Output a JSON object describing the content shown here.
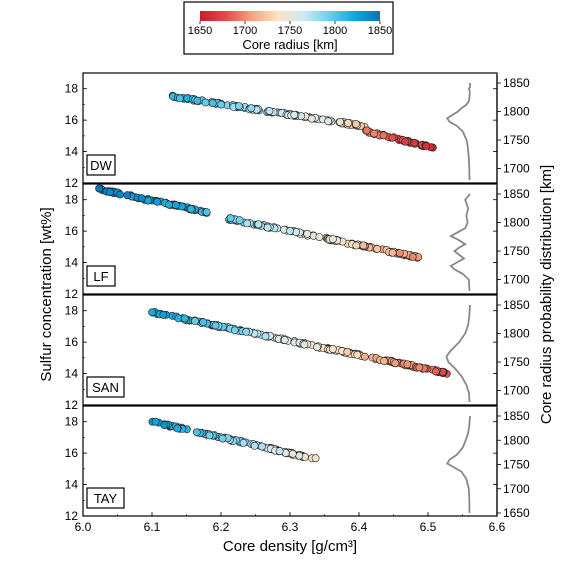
{
  "chart_data": {
    "type": "scatter",
    "xlabel": "Core density [g/cm³]",
    "ylabel": "Sulfur concentration [wt%]",
    "right_ylabel": "Core radius probability distribution [km]",
    "xlim": [
      6.0,
      6.6
    ],
    "x_ticks": [
      "6.0",
      "6.1",
      "6.2",
      "6.3",
      "6.4",
      "6.5",
      "6.6"
    ],
    "colorbar": {
      "label": "Core radius [km]",
      "range": [
        1650,
        1850
      ],
      "ticks": [
        "1650",
        "1700",
        "1750",
        "1800",
        "1850"
      ],
      "colors": [
        "#c81d2b",
        "#e34a4a",
        "#f3a27d",
        "#fbe3c2",
        "#cfeaf4",
        "#6fd0ec",
        "#0fa8dc",
        "#0873b8"
      ]
    },
    "panels": [
      {
        "label": "DW",
        "ylim": [
          12,
          19
        ],
        "y_ticks": [
          "12",
          "14",
          "16",
          "18"
        ],
        "r_ticks": [
          "1700",
          "1750",
          "1800",
          "1850"
        ],
        "r_range": [
          1680,
          1850
        ],
        "segments": [
          {
            "x": [
              6.13,
              6.41
            ],
            "y": [
              17.5,
              15.6
            ],
            "r": [
              1815,
              1730
            ]
          },
          {
            "x": [
              6.41,
              6.51
            ],
            "y": [
              15.3,
              14.2
            ],
            "r": [
              1700,
              1660
            ]
          }
        ],
        "distribution": [
          [
            1680,
            0.02
          ],
          [
            1700,
            0.03
          ],
          [
            1720,
            0.05
          ],
          [
            1740,
            0.1
          ],
          [
            1750,
            0.14
          ],
          [
            1765,
            0.3
          ],
          [
            1775,
            0.55
          ],
          [
            1782,
            0.85
          ],
          [
            1788,
            0.95
          ],
          [
            1795,
            0.7
          ],
          [
            1800,
            0.5
          ],
          [
            1806,
            0.35
          ],
          [
            1812,
            0.15
          ],
          [
            1818,
            0.05
          ],
          [
            1825,
            0.02
          ],
          [
            1835,
            0.01
          ],
          [
            1840,
            0.04
          ],
          [
            1843,
            0.0
          ],
          [
            1850,
            0.0
          ]
        ]
      },
      {
        "label": "LF",
        "ylim": [
          12,
          19
        ],
        "y_ticks": [
          "12",
          "14",
          "16",
          "18"
        ],
        "r_ticks": [
          "1700",
          "1750",
          "1800",
          "1850"
        ],
        "r_range": [
          1680,
          1850
        ],
        "segments": [
          {
            "x": [
              6.02,
              6.18
            ],
            "y": [
              18.7,
              17.2
            ],
            "r": [
              1845,
              1810
            ]
          },
          {
            "x": [
              6.21,
              6.49
            ],
            "y": [
              16.8,
              14.3
            ],
            "r": [
              1790,
              1700
            ]
          }
        ],
        "distribution": [
          [
            1680,
            0.02
          ],
          [
            1700,
            0.05
          ],
          [
            1710,
            0.3
          ],
          [
            1718,
            0.65
          ],
          [
            1724,
            0.8
          ],
          [
            1730,
            0.55
          ],
          [
            1737,
            0.25
          ],
          [
            1745,
            0.5
          ],
          [
            1750,
            0.65
          ],
          [
            1756,
            0.45
          ],
          [
            1762,
            0.2
          ],
          [
            1770,
            0.5
          ],
          [
            1776,
            0.8
          ],
          [
            1782,
            0.55
          ],
          [
            1790,
            0.2
          ],
          [
            1800,
            0.1
          ],
          [
            1812,
            0.15
          ],
          [
            1825,
            0.08
          ],
          [
            1840,
            0.2
          ],
          [
            1850,
            0.0
          ]
        ]
      },
      {
        "label": "SAN",
        "ylim": [
          12,
          19
        ],
        "y_ticks": [
          "12",
          "14",
          "16",
          "18"
        ],
        "r_ticks": [
          "1700",
          "1750",
          "1800",
          "1850"
        ],
        "r_range": [
          1680,
          1850
        ],
        "segments": [
          {
            "x": [
              6.1,
              6.53
            ],
            "y": [
              17.9,
              14.0
            ],
            "r": [
              1825,
              1680
            ]
          }
        ],
        "distribution": [
          [
            1680,
            0.02
          ],
          [
            1695,
            0.04
          ],
          [
            1710,
            0.15
          ],
          [
            1725,
            0.35
          ],
          [
            1740,
            0.65
          ],
          [
            1750,
            0.9
          ],
          [
            1760,
            0.98
          ],
          [
            1770,
            0.8
          ],
          [
            1785,
            0.45
          ],
          [
            1800,
            0.2
          ],
          [
            1815,
            0.08
          ],
          [
            1830,
            0.03
          ],
          [
            1850,
            0.0
          ]
        ]
      },
      {
        "label": "TAY",
        "ylim": [
          12,
          19
        ],
        "y_ticks": [
          "12",
          "14",
          "16",
          "18"
        ],
        "r_ticks": [
          "1650",
          "1700",
          "1750",
          "1800",
          "1850"
        ],
        "r_range": [
          1650,
          1850
        ],
        "segments": [
          {
            "x": [
              6.1,
              6.34
            ],
            "y": [
              18.0,
              15.6
            ],
            "r": [
              1830,
              1740
            ]
          }
        ],
        "distribution": [
          [
            1650,
            0.02
          ],
          [
            1680,
            0.03
          ],
          [
            1700,
            0.05
          ],
          [
            1720,
            0.15
          ],
          [
            1735,
            0.35
          ],
          [
            1745,
            0.7
          ],
          [
            1752,
            0.95
          ],
          [
            1760,
            0.85
          ],
          [
            1770,
            0.55
          ],
          [
            1785,
            0.3
          ],
          [
            1800,
            0.18
          ],
          [
            1815,
            0.08
          ],
          [
            1830,
            0.03
          ],
          [
            1850,
            0.0
          ]
        ]
      }
    ]
  }
}
